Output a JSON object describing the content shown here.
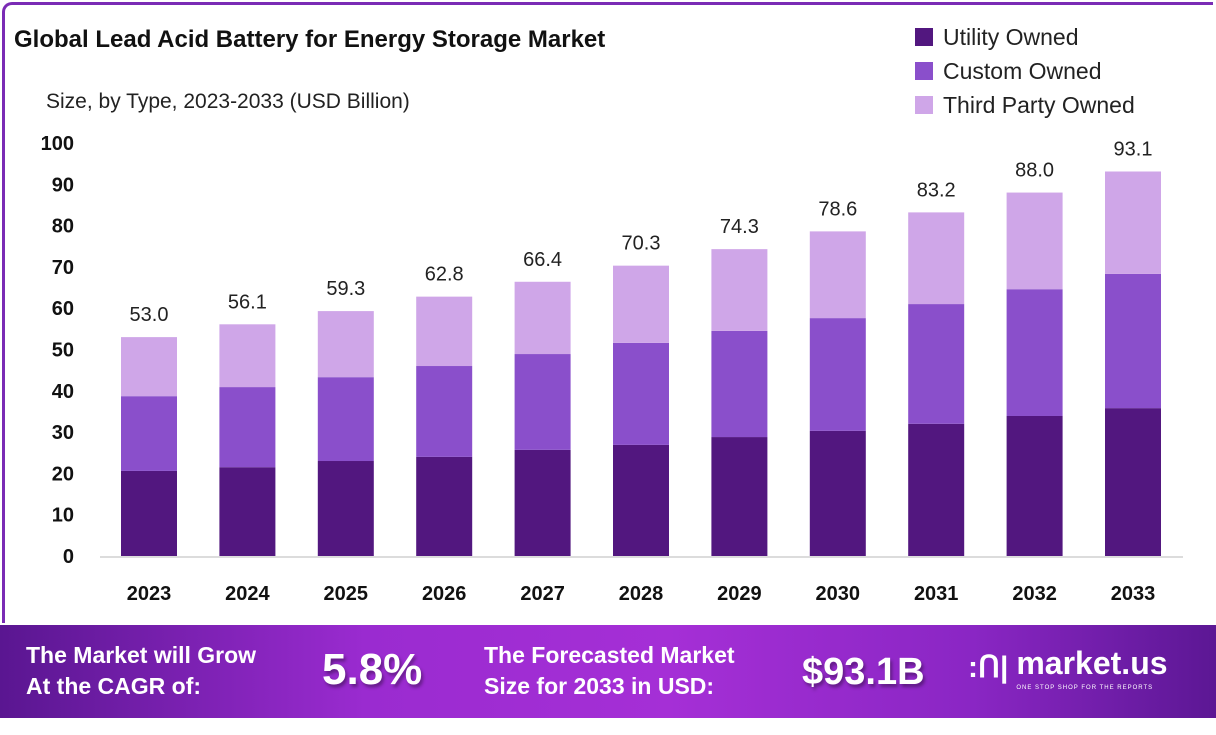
{
  "title": "Global Lead Acid Battery for Energy Storage Market",
  "subtitle": "Size, by Type, 2023-2033 (USD Billion)",
  "colors": {
    "Utility Owned": "#52177f",
    "Custom Owned": "#8a4fcb",
    "Third Party Owned": "#cfa6e8",
    "frame": "#7a2bb5"
  },
  "chart_data": {
    "type": "bar",
    "stacked": true,
    "title": "Global Lead Acid Battery for Energy Storage Market",
    "subtitle": "Size, by Type, 2023-2033 (USD Billion)",
    "categories": [
      "2023",
      "2024",
      "2025",
      "2026",
      "2027",
      "2028",
      "2029",
      "2030",
      "2031",
      "2032",
      "2033"
    ],
    "series": [
      {
        "name": "Utility Owned",
        "values": [
          20.6,
          21.5,
          23.0,
          24.0,
          25.7,
          26.9,
          28.8,
          30.3,
          32.0,
          33.9,
          35.8
        ]
      },
      {
        "name": "Custom Owned",
        "values": [
          18.1,
          19.4,
          20.3,
          22.0,
          23.2,
          24.7,
          25.7,
          27.3,
          29.0,
          30.7,
          32.5
        ]
      },
      {
        "name": "Third Party Owned",
        "values": [
          14.3,
          15.2,
          16.0,
          16.8,
          17.5,
          18.7,
          19.8,
          21.0,
          22.2,
          23.4,
          24.8
        ]
      }
    ],
    "totals": [
      "53.0",
      "56.1",
      "59.3",
      "62.8",
      "66.4",
      "70.3",
      "74.3",
      "78.6",
      "83.2",
      "88.0",
      "93.1"
    ],
    "ylim": [
      0,
      100
    ],
    "yticks": [
      "0",
      "10",
      "20",
      "30",
      "40",
      "50",
      "60",
      "70",
      "80",
      "90",
      "100"
    ],
    "grid": false,
    "legend_position": "top-right"
  },
  "banner": {
    "cagr_label_1": "The Market will Grow",
    "cagr_label_2": "At the CAGR of:",
    "cagr_value": "5.8%",
    "forecast_label_1": "The Forecasted Market",
    "forecast_label_2": "Size for 2033 in USD:",
    "forecast_value": "$93.1B",
    "logo_name": "market.us",
    "logo_tagline": "ONE STOP SHOP FOR THE REPORTS"
  }
}
